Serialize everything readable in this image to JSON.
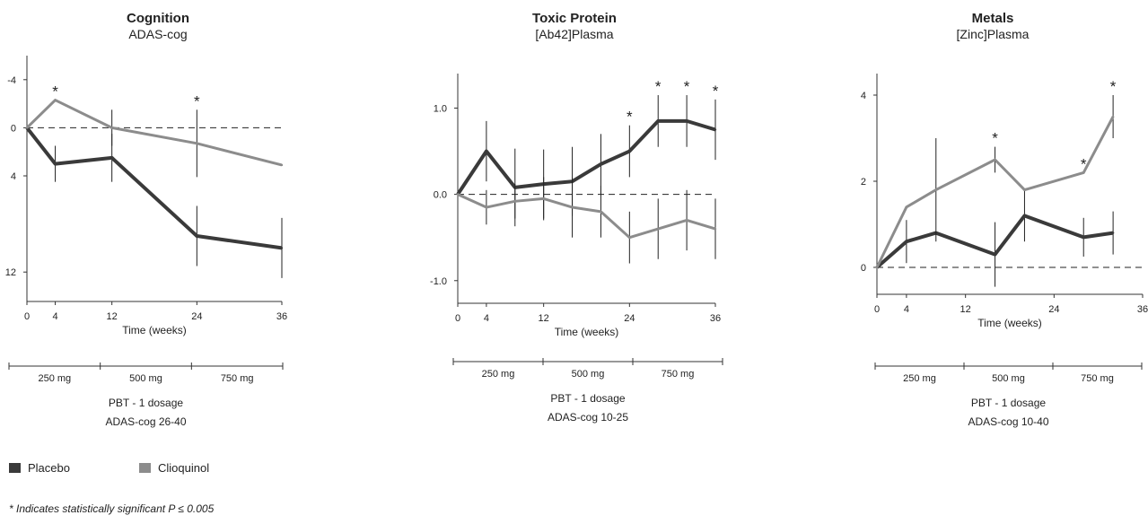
{
  "colors": {
    "placebo": "#3a3a3a",
    "clioquinol": "#8c8c8c",
    "axis": "#333333"
  },
  "chart_data": [
    {
      "type": "line",
      "title": "Cognition",
      "subtitle": "ADAS-cog",
      "xlabel": "Time (weeks)",
      "x_ticks": [
        0,
        4,
        12,
        24,
        36
      ],
      "y_ticks": [
        -4,
        0,
        4,
        12
      ],
      "ylim": [
        -6,
        14
      ],
      "y_inverted": true,
      "xlim": [
        0,
        36
      ],
      "baseline": 0,
      "series": [
        {
          "name": "Placebo",
          "x": [
            0,
            4,
            12,
            24,
            36
          ],
          "y": [
            0,
            3.0,
            2.5,
            9.0,
            10.0
          ],
          "err": [
            0,
            1.5,
            2.0,
            2.5,
            2.5
          ]
        },
        {
          "name": "Clioquinol",
          "x": [
            0,
            4,
            12,
            24,
            36
          ],
          "y": [
            0,
            -2.3,
            0,
            1.3,
            3.1
          ],
          "err": [
            0,
            0,
            1.5,
            2.8,
            0
          ]
        }
      ],
      "significant_x": [
        4,
        24
      ],
      "doses": [
        "250 mg",
        "500 mg",
        "750 mg"
      ],
      "caption": [
        "PBT - 1 dosage",
        "ADAS-cog 26-40"
      ]
    },
    {
      "type": "line",
      "title": "Toxic Protein",
      "subtitle": "[Ab42]Plasma",
      "xlabel": "Time (weeks)",
      "x_ticks": [
        0,
        4,
        12,
        24,
        36
      ],
      "y_ticks": [
        -1.0,
        0.0,
        1.0
      ],
      "y_tick_labels": [
        "-1.0",
        "0.0",
        "1.0"
      ],
      "ylim": [
        -1.2,
        1.4
      ],
      "xlim": [
        0,
        36
      ],
      "baseline": 0,
      "series": [
        {
          "name": "Placebo",
          "x": [
            0,
            4,
            8,
            12,
            16,
            20,
            24,
            28,
            32,
            36
          ],
          "y": [
            0,
            0.5,
            0.08,
            0.12,
            0.15,
            0.35,
            0.5,
            0.85,
            0.85,
            0.75
          ],
          "err": [
            0,
            0.35,
            0.45,
            0.4,
            0.4,
            0.35,
            0.3,
            0.3,
            0.3,
            0.35
          ]
        },
        {
          "name": "Clioquinol",
          "x": [
            0,
            4,
            8,
            12,
            16,
            20,
            24,
            28,
            32,
            36
          ],
          "y": [
            0,
            -0.15,
            -0.08,
            -0.05,
            -0.15,
            -0.2,
            -0.5,
            -0.4,
            -0.3,
            -0.4
          ],
          "err": [
            0,
            0.2,
            0.2,
            0.25,
            0.35,
            0.3,
            0.3,
            0.35,
            0.35,
            0.35
          ]
        }
      ],
      "significant_x": [
        24,
        28,
        32,
        36
      ],
      "doses": [
        "250 mg",
        "500 mg",
        "750 mg"
      ],
      "caption": [
        "PBT - 1 dosage",
        "ADAS-cog 10-25"
      ]
    },
    {
      "type": "line",
      "title": "Metals",
      "subtitle": "[Zinc]Plasma",
      "xlabel": "Time (weeks)",
      "x_ticks": [
        0,
        4,
        12,
        24,
        36
      ],
      "y_ticks": [
        0,
        2,
        4
      ],
      "ylim": [
        -0.5,
        4.5
      ],
      "xlim": [
        0,
        36
      ],
      "baseline": 0,
      "series": [
        {
          "name": "Placebo",
          "x": [
            0,
            4,
            8,
            16,
            20,
            28,
            32
          ],
          "y": [
            0,
            0.6,
            0.8,
            0.3,
            1.2,
            0.7,
            0.8
          ],
          "err": [
            0,
            0.5,
            0,
            0.75,
            0.6,
            0.45,
            0.5
          ]
        },
        {
          "name": "Clioquinol",
          "x": [
            0,
            4,
            8,
            16,
            20,
            28,
            32
          ],
          "y": [
            0,
            1.4,
            1.8,
            2.5,
            1.8,
            2.2,
            3.5
          ],
          "err": [
            0,
            0,
            1.2,
            0.3,
            0,
            0,
            0.5
          ]
        }
      ],
      "significant_x": [
        16,
        28,
        32
      ],
      "doses": [
        "250 mg",
        "500 mg",
        "750 mg"
      ],
      "caption": [
        "PBT - 1 dosage",
        "ADAS-cog 10-40"
      ]
    }
  ],
  "legend": {
    "placebo": "Placebo",
    "clioquinol": "Clioquinol"
  },
  "footnote": "* Indicates statistically significant P ≤ 0.005"
}
